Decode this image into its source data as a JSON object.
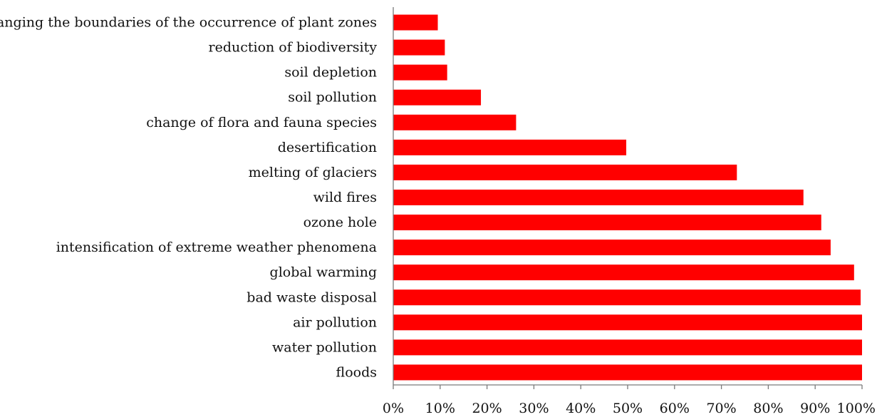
{
  "chart_data": {
    "type": "bar",
    "orientation": "horizontal",
    "title": "",
    "xlabel": "",
    "ylabel": "",
    "xlim": [
      0,
      100
    ],
    "grid": false,
    "legend": "none",
    "bar_color": "#ff0000",
    "categories": [
      "changing the boundaries of the occurrence of plant zones",
      "reduction of biodiversity",
      "soil depletion",
      "soil pollution",
      "change of flora and fauna species",
      "desertification",
      "melting of glaciers",
      "wild fires",
      "ozone hole",
      "intensification of extreme weather phenomena",
      "global warming",
      "bad waste disposal",
      "air pollution",
      "water pollution",
      "floods"
    ],
    "values": [
      9.5,
      11,
      11.5,
      18.7,
      26.2,
      49.7,
      73.3,
      87.5,
      91.3,
      93.3,
      98.3,
      99.7,
      100,
      100,
      100
    ],
    "x_ticks": [
      "0%",
      "10%",
      "20%",
      "30%",
      "40%",
      "50%",
      "60%",
      "70%",
      "80%",
      "90%",
      "100%"
    ]
  }
}
